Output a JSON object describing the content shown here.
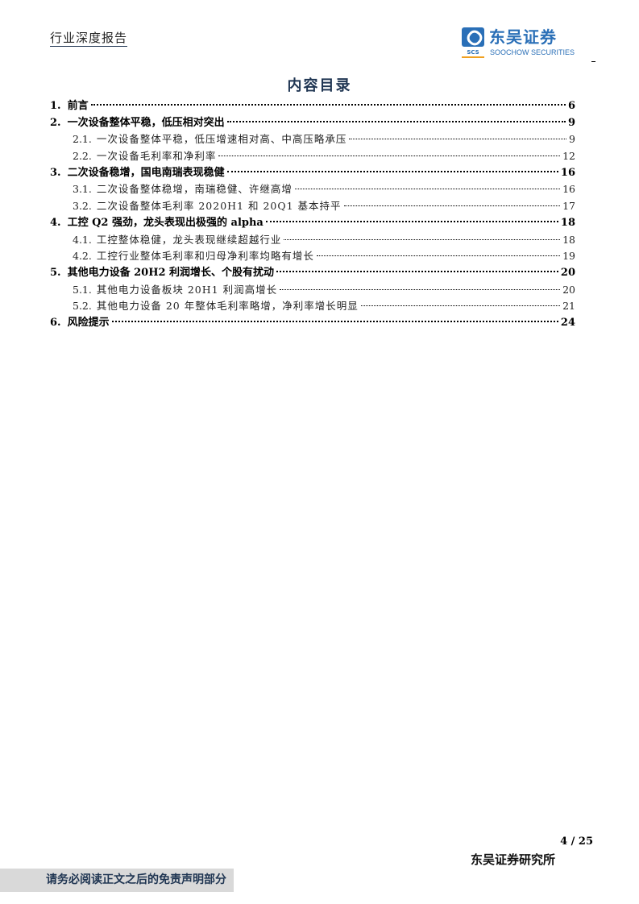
{
  "header": {
    "report_type": "行业深度报告",
    "logo_cn": "东吴证券",
    "logo_en": "SOOCHOW SECURITIES",
    "logo_mark": "SCS"
  },
  "title": "内容目录",
  "toc": [
    {
      "num": "1.",
      "text": "前言",
      "page": "6",
      "level": 1
    },
    {
      "num": "2.",
      "text": "一次设备整体平稳，低压相对突出",
      "page": "9",
      "level": 1
    },
    {
      "num": "2.1.",
      "text": "一次设备整体平稳，低压增速相对高、中高压略承压",
      "page": "9",
      "level": 2
    },
    {
      "num": "2.2.",
      "text": "一次设备毛利率和净利率",
      "page": "12",
      "level": 2
    },
    {
      "num": "3.",
      "text": "二次设备稳增，国电南瑞表现稳健",
      "page": "16",
      "level": 1
    },
    {
      "num": "3.1.",
      "text": "二次设备整体稳增，南瑞稳健、许继高增",
      "page": "16",
      "level": 2
    },
    {
      "num": "3.2.",
      "text": "二次设备整体毛利率 2020H1 和 20Q1 基本持平",
      "page": "17",
      "level": 2
    },
    {
      "num": "4.",
      "text": "工控 Q2 强劲，龙头表现出极强的 alpha",
      "page": "18",
      "level": 1
    },
    {
      "num": "4.1.",
      "text": "工控整体稳健，龙头表现继续超越行业",
      "page": "18",
      "level": 2
    },
    {
      "num": "4.2.",
      "text": "工控行业整体毛利率和归母净利率均略有增长",
      "page": "19",
      "level": 2
    },
    {
      "num": "5.",
      "text": "其他电力设备 20H2 利润增长、个股有扰动",
      "page": "20",
      "level": 1
    },
    {
      "num": "5.1.",
      "text": "其他电力设备板块 20H1 利润高增长",
      "page": "20",
      "level": 2
    },
    {
      "num": "5.2.",
      "text": "其他电力设备 20 年整体毛利率略增，净利率增长明显",
      "page": "21",
      "level": 2
    },
    {
      "num": "6.",
      "text": "风险提示",
      "page": "24",
      "level": 1
    }
  ],
  "footer": {
    "page_number": "4 / 25",
    "institute": "东吴证券研究所",
    "disclaimer": "请务必阅读正文之后的免责声明部分"
  },
  "colors": {
    "navy": "#1f3552",
    "brand_blue": "#2a6fb7"
  }
}
